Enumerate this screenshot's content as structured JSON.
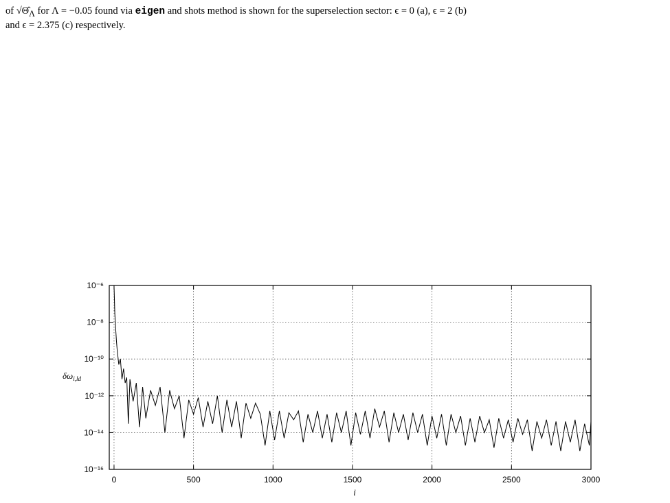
{
  "caption": {
    "line1": [
      "of √Θ̂",
      "Λ",
      " for Λ = −0.05 found via ",
      "eigen",
      " and shots method is shown for the superselection sector: ϵ = 0 (a), ϵ = 2 (b)"
    ],
    "line2": "and ϵ = 2.375 (c) respectively."
  },
  "chart_data": {
    "type": "line",
    "x_label": "i",
    "y_label": "δω",
    "y_label_sub": "i,ld",
    "log_y": true,
    "grid": true,
    "color": "#000000",
    "xlim": [
      -30,
      3000
    ],
    "ylim": [
      1e-16,
      1e-06
    ],
    "xticks": [
      0,
      500,
      1000,
      1500,
      2000,
      2500,
      3000
    ],
    "yticks": [
      {
        "value": 1e-16,
        "label": "10⁻¹⁶"
      },
      {
        "value": 1e-14,
        "label": "10⁻¹⁴"
      },
      {
        "value": 1e-12,
        "label": "10⁻¹²"
      },
      {
        "value": 1e-10,
        "label": "10⁻¹⁰"
      },
      {
        "value": 1e-08,
        "label": "10⁻⁸"
      },
      {
        "value": 1e-06,
        "label": "10⁻⁶"
      }
    ],
    "x": [
      0,
      5,
      10,
      15,
      20,
      30,
      40,
      50,
      60,
      70,
      80,
      90,
      100,
      120,
      140,
      160,
      180,
      200,
      230,
      260,
      290,
      320,
      350,
      380,
      410,
      440,
      470,
      500,
      530,
      560,
      590,
      620,
      650,
      680,
      710,
      740,
      770,
      800,
      830,
      860,
      890,
      920,
      950,
      980,
      1010,
      1040,
      1070,
      1100,
      1130,
      1160,
      1190,
      1220,
      1250,
      1280,
      1310,
      1340,
      1370,
      1400,
      1430,
      1460,
      1490,
      1520,
      1550,
      1580,
      1610,
      1640,
      1670,
      1700,
      1730,
      1760,
      1790,
      1820,
      1850,
      1880,
      1910,
      1940,
      1970,
      2000,
      2030,
      2060,
      2090,
      2120,
      2150,
      2180,
      2210,
      2240,
      2270,
      2300,
      2330,
      2360,
      2390,
      2420,
      2450,
      2480,
      2510,
      2540,
      2570,
      2600,
      2630,
      2660,
      2690,
      2720,
      2750,
      2780,
      2810,
      2840,
      2870,
      2900,
      2930,
      2960,
      2990,
      3000
    ],
    "values": [
      1e-06,
      3e-08,
      5e-09,
      1e-09,
      3e-10,
      5e-11,
      1e-10,
      8e-12,
      3e-11,
      5e-12,
      1e-11,
      3e-14,
      8e-12,
      5e-13,
      5e-12,
      2e-14,
      3e-12,
      6e-14,
      2e-12,
      3e-13,
      3e-12,
      1e-14,
      2e-12,
      2e-13,
      1e-12,
      5e-15,
      6e-13,
      1e-13,
      8e-13,
      2e-14,
      5e-13,
      3e-14,
      1e-12,
      1e-14,
      6e-13,
      2e-14,
      5e-13,
      5e-15,
      4e-13,
      6e-14,
      4e-13,
      1e-13,
      2e-15,
      1.5e-13,
      4e-15,
      1.5e-13,
      5e-15,
      1.2e-13,
      5e-14,
      1.5e-13,
      3e-15,
      1e-13,
      1e-14,
      1.5e-13,
      5e-15,
      1e-13,
      3e-15,
      1.2e-13,
      1e-14,
      1.5e-13,
      2e-15,
      1.2e-13,
      8e-15,
      1.5e-13,
      5e-15,
      2e-13,
      2e-14,
      1.5e-13,
      3e-15,
      1.2e-13,
      1e-14,
      1e-13,
      4e-15,
      1.2e-13,
      1e-14,
      1e-13,
      2e-15,
      8e-14,
      5e-15,
      1e-13,
      2e-15,
      1e-13,
      1e-14,
      8e-14,
      2e-15,
      6e-14,
      3e-15,
      8e-14,
      1e-14,
      5e-14,
      1.5e-15,
      6e-14,
      5e-15,
      5e-14,
      3e-15,
      6e-14,
      8e-15,
      5e-14,
      1e-15,
      4e-14,
      5e-15,
      5e-14,
      2e-15,
      4e-14,
      1e-15,
      4e-14,
      3e-15,
      5e-14,
      1e-15,
      3e-14,
      2e-15,
      4e-14
    ]
  }
}
